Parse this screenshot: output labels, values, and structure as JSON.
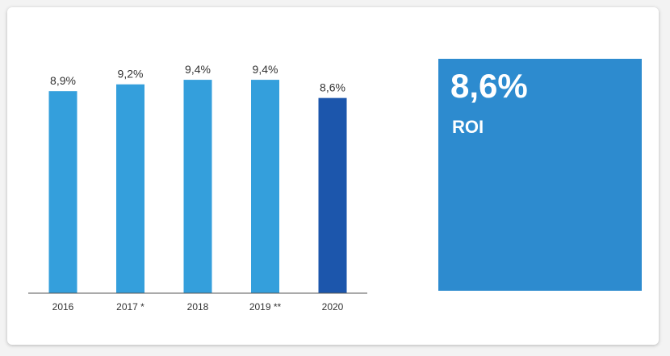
{
  "chart_data": {
    "type": "bar",
    "categories": [
      "2016",
      "2017 *",
      "2018",
      "2019 **",
      "2020"
    ],
    "values": [
      8.9,
      9.2,
      9.4,
      9.4,
      8.6
    ],
    "value_labels": [
      "8,9%",
      "9,2%",
      "9,4%",
      "9,4%",
      "8,6%"
    ],
    "unit": "%",
    "title": "",
    "xlabel": "",
    "ylabel": "",
    "ylim": [
      0,
      11
    ],
    "grid": false,
    "colors": {
      "bar": "#349fdc",
      "highlight": "#1c56ac",
      "axis": "#555555",
      "label": "#333333"
    },
    "highlight_index": 4
  },
  "kpi": {
    "value": "8,6%",
    "label": "ROI",
    "color": "#2d8bcf"
  }
}
